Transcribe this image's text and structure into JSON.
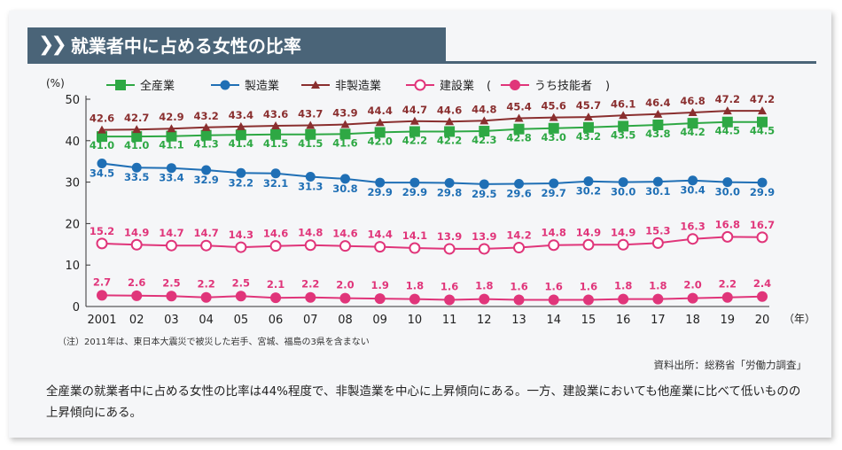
{
  "title": "就業者中に占める女性の比率",
  "note": "（注）2011年は、東日本大震災で被災した岩手、宮城、福島の3県を含まない",
  "source": "資料出所：総務省「労働力調査」",
  "description": "全産業の就業者中に占める女性の比率は44%程度で、非製造業を中心に上昇傾向にある。一方、建設業においても他産業に比べて低いものの上昇傾向にある。",
  "chart_data": {
    "type": "line",
    "ylabel": "(%)",
    "xlabel": "（年）",
    "ylim": [
      0,
      50
    ],
    "yticks": [
      0,
      10,
      20,
      30,
      40,
      50
    ],
    "grid": false,
    "legend_position": "top",
    "categories": [
      "2001",
      "02",
      "03",
      "04",
      "05",
      "06",
      "07",
      "08",
      "09",
      "10",
      "11",
      "12",
      "13",
      "14",
      "15",
      "16",
      "17",
      "18",
      "19",
      "20"
    ],
    "series": [
      {
        "name": "全産業",
        "color": "#2ea844",
        "marker": "square",
        "values": [
          41.0,
          41.0,
          41.1,
          41.3,
          41.4,
          41.5,
          41.5,
          41.6,
          42.0,
          42.2,
          42.2,
          42.3,
          42.8,
          43.0,
          43.2,
          43.5,
          43.8,
          44.2,
          44.5,
          44.5
        ]
      },
      {
        "name": "製造業",
        "color": "#1f6fb5",
        "marker": "circle",
        "values": [
          34.5,
          33.5,
          33.4,
          32.9,
          32.2,
          32.1,
          31.3,
          30.8,
          29.9,
          29.9,
          29.8,
          29.5,
          29.6,
          29.7,
          30.2,
          30.0,
          30.1,
          30.4,
          30.0,
          29.9
        ]
      },
      {
        "name": "非製造業",
        "color": "#8a2f2f",
        "marker": "triangle",
        "values": [
          42.6,
          42.7,
          42.9,
          43.2,
          43.4,
          43.6,
          43.7,
          43.9,
          44.4,
          44.7,
          44.6,
          44.8,
          45.4,
          45.6,
          45.7,
          46.1,
          46.4,
          46.8,
          47.2,
          47.2
        ]
      },
      {
        "name": "建設業",
        "color": "#e0357a",
        "marker": "open-circle",
        "values": [
          15.2,
          14.9,
          14.7,
          14.7,
          14.3,
          14.6,
          14.8,
          14.6,
          14.4,
          14.1,
          13.9,
          13.9,
          14.2,
          14.8,
          14.9,
          14.9,
          15.3,
          16.3,
          16.8,
          16.7
        ]
      },
      {
        "name": "うち技能者",
        "color": "#e0357a",
        "marker": "filled-circle",
        "values": [
          2.7,
          2.6,
          2.5,
          2.2,
          2.5,
          2.1,
          2.2,
          2.0,
          1.9,
          1.8,
          1.6,
          1.8,
          1.6,
          1.6,
          1.6,
          1.8,
          1.8,
          2.0,
          2.2,
          2.4
        ]
      }
    ]
  }
}
